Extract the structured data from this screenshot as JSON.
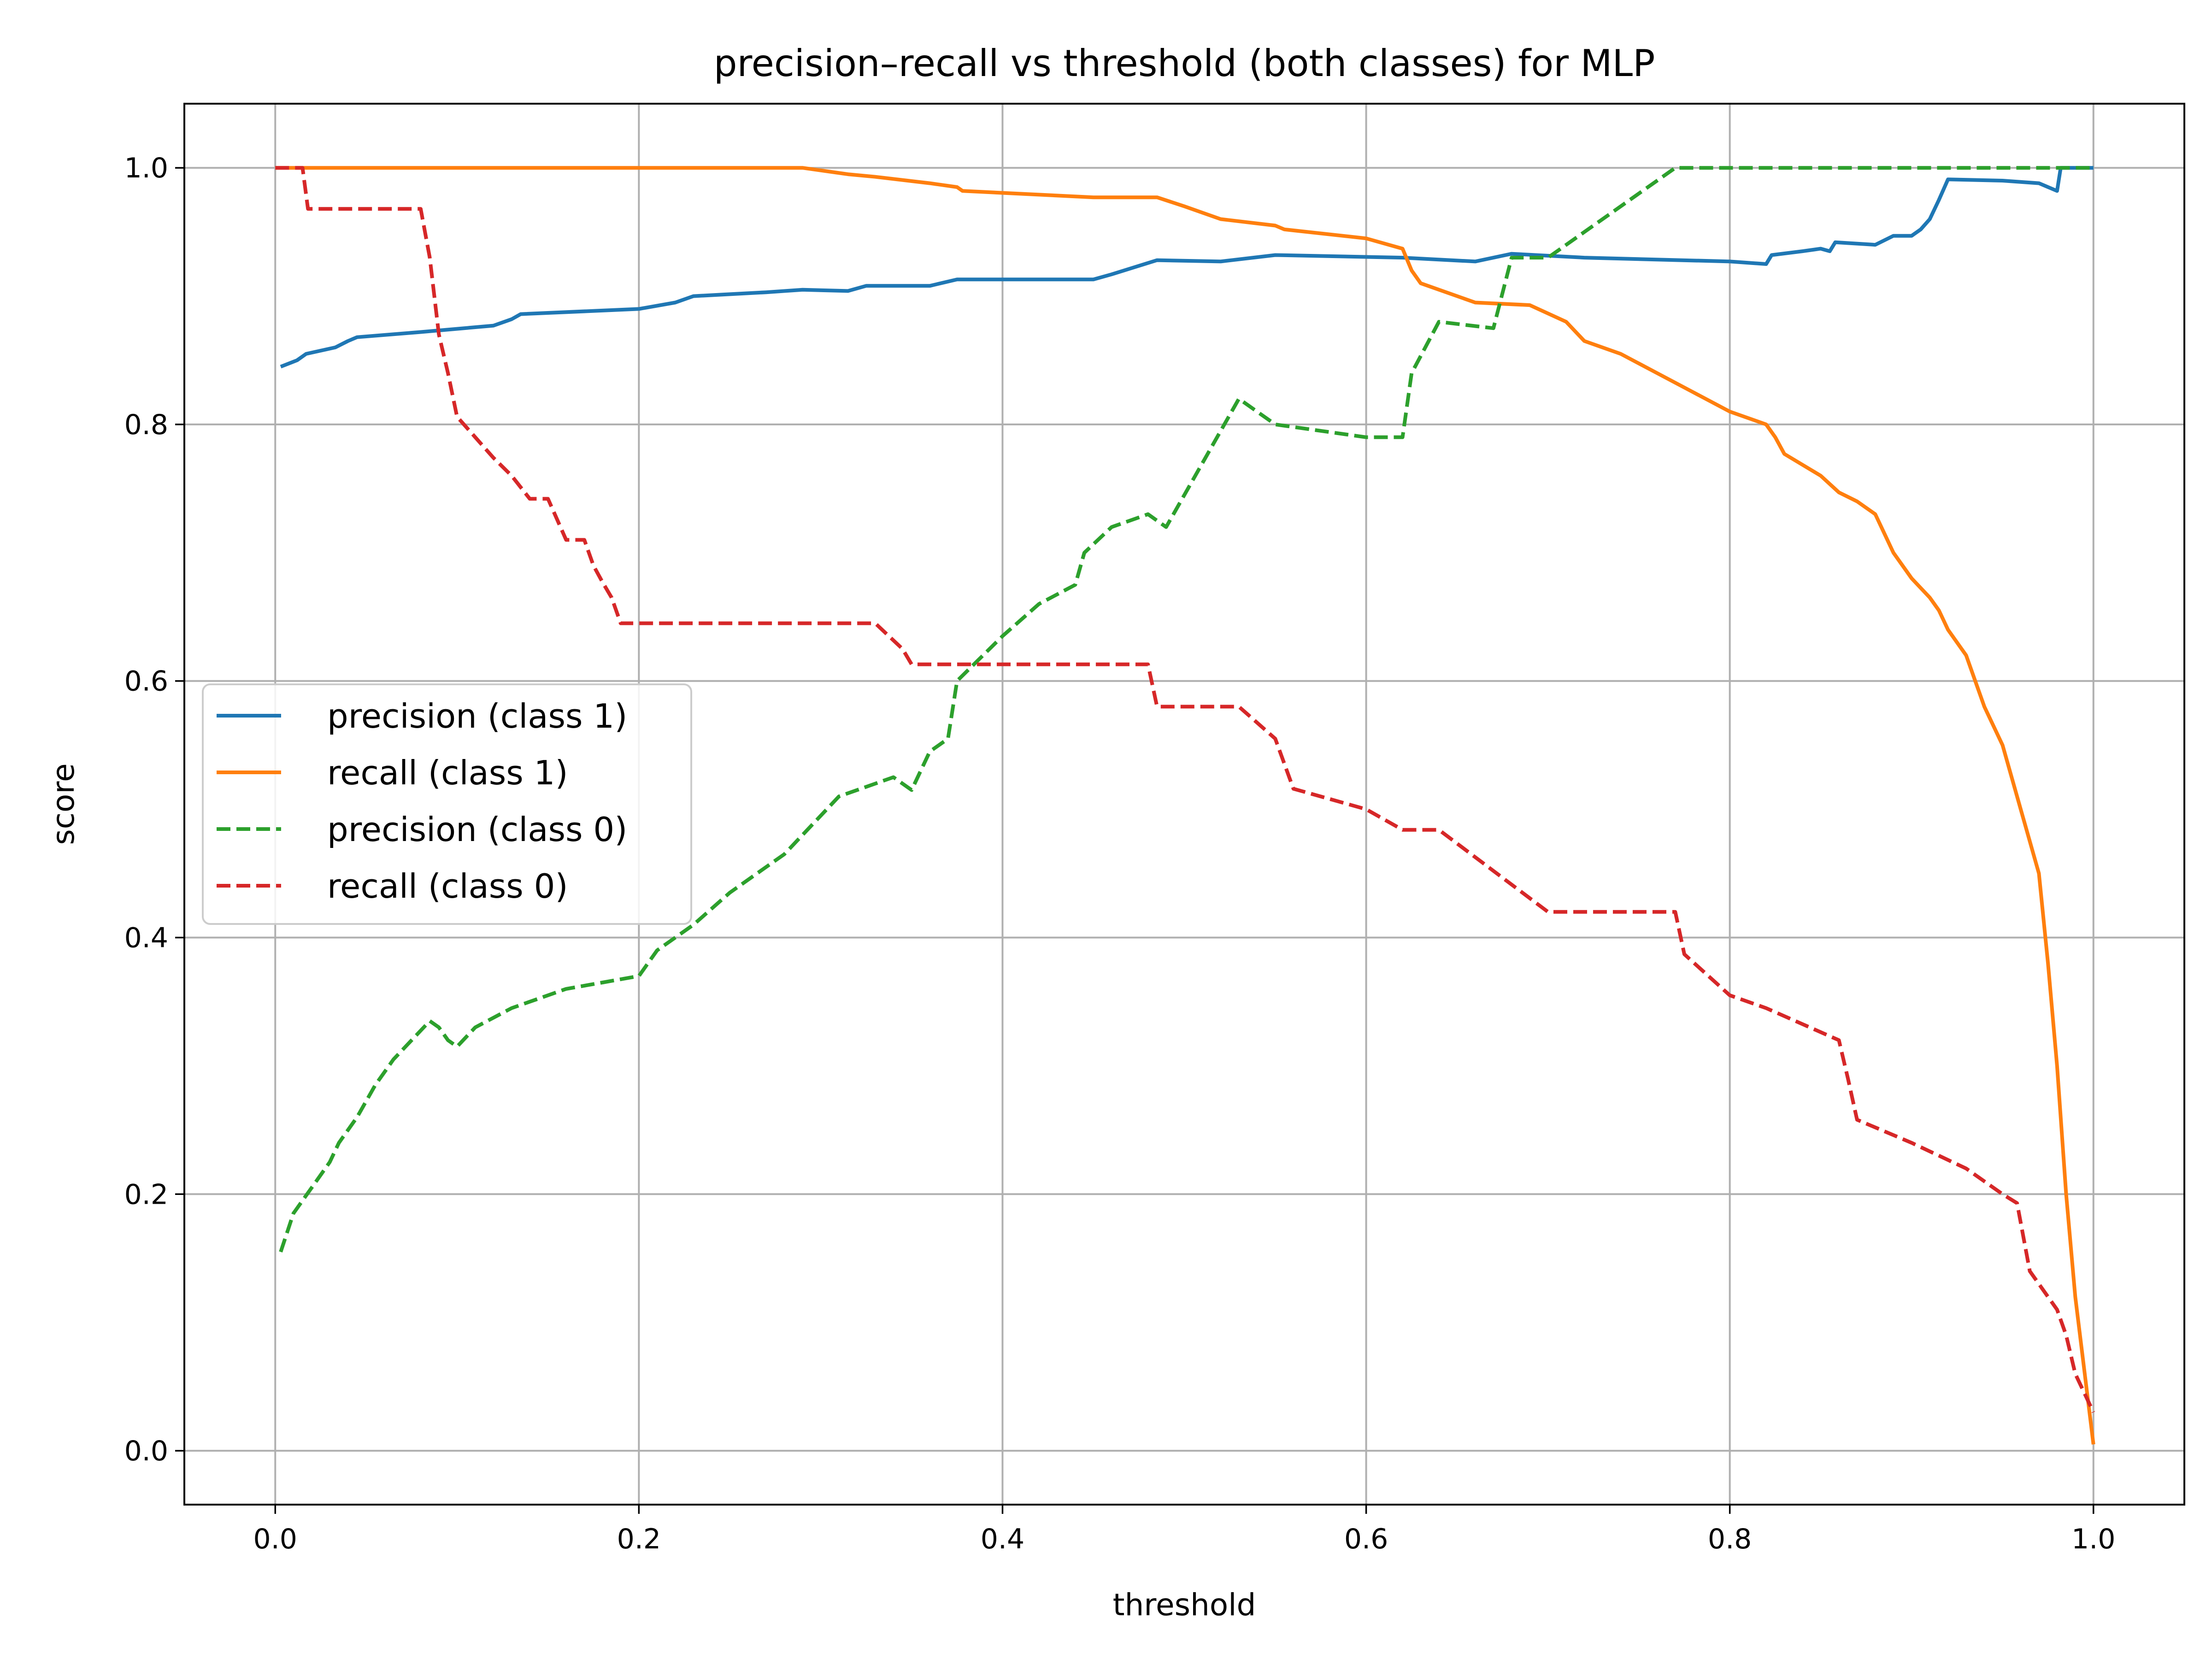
{
  "chart_data": {
    "type": "line",
    "title": "precision–recall vs threshold (both classes) for MLP",
    "xlabel": "threshold",
    "ylabel": "score",
    "xlim": [
      -0.05,
      1.05
    ],
    "ylim": [
      -0.042,
      1.05
    ],
    "xticks": [
      0.0,
      0.2,
      0.4,
      0.6,
      0.8,
      1.0
    ],
    "xtick_labels": [
      "0.0",
      "0.2",
      "0.4",
      "0.6",
      "0.8",
      "1.0"
    ],
    "yticks": [
      0.0,
      0.2,
      0.4,
      0.6,
      0.8,
      1.0
    ],
    "ytick_labels": [
      "0.0",
      "0.2",
      "0.4",
      "0.6",
      "0.8",
      "1.0"
    ],
    "grid": true,
    "legend_position": "center-left",
    "series": [
      {
        "name": "precision (class 1)",
        "color": "#1f77b4",
        "dash": "solid",
        "x": [
          0.003,
          0.012,
          0.017,
          0.033,
          0.04,
          0.045,
          0.08,
          0.12,
          0.13,
          0.135,
          0.2,
          0.22,
          0.23,
          0.27,
          0.29,
          0.315,
          0.325,
          0.36,
          0.375,
          0.45,
          0.46,
          0.485,
          0.52,
          0.55,
          0.62,
          0.66,
          0.68,
          0.72,
          0.8,
          0.82,
          0.823,
          0.84,
          0.85,
          0.855,
          0.858,
          0.88,
          0.89,
          0.9,
          0.905,
          0.91,
          0.915,
          0.92,
          0.95,
          0.97,
          0.98,
          0.982,
          0.99,
          1.0
        ],
        "y": [
          0.845,
          0.85,
          0.855,
          0.86,
          0.865,
          0.868,
          0.872,
          0.877,
          0.882,
          0.886,
          0.89,
          0.895,
          0.9,
          0.903,
          0.905,
          0.904,
          0.908,
          0.908,
          0.913,
          0.913,
          0.917,
          0.928,
          0.927,
          0.932,
          0.93,
          0.927,
          0.933,
          0.93,
          0.927,
          0.925,
          0.932,
          0.935,
          0.937,
          0.935,
          0.942,
          0.94,
          0.947,
          0.947,
          0.952,
          0.96,
          0.975,
          0.991,
          0.99,
          0.988,
          0.982,
          1.0,
          1.0,
          1.0
        ]
      },
      {
        "name": "recall (class 1)",
        "color": "#ff7f0e",
        "dash": "solid",
        "x": [
          0.0,
          0.29,
          0.315,
          0.33,
          0.36,
          0.375,
          0.378,
          0.45,
          0.485,
          0.5,
          0.51,
          0.52,
          0.55,
          0.555,
          0.6,
          0.62,
          0.625,
          0.63,
          0.66,
          0.69,
          0.71,
          0.72,
          0.74,
          0.76,
          0.78,
          0.8,
          0.82,
          0.825,
          0.83,
          0.85,
          0.86,
          0.87,
          0.875,
          0.88,
          0.89,
          0.9,
          0.91,
          0.915,
          0.92,
          0.93,
          0.94,
          0.95,
          0.96,
          0.97,
          0.975,
          0.98,
          0.985,
          0.99,
          1.0
        ],
        "y": [
          1.0,
          1.0,
          0.995,
          0.993,
          0.988,
          0.985,
          0.982,
          0.977,
          0.977,
          0.97,
          0.965,
          0.96,
          0.955,
          0.952,
          0.945,
          0.937,
          0.92,
          0.91,
          0.895,
          0.893,
          0.88,
          0.865,
          0.855,
          0.84,
          0.825,
          0.81,
          0.8,
          0.79,
          0.777,
          0.76,
          0.747,
          0.74,
          0.735,
          0.73,
          0.7,
          0.68,
          0.665,
          0.655,
          0.64,
          0.62,
          0.58,
          0.55,
          0.5,
          0.45,
          0.38,
          0.3,
          0.2,
          0.12,
          0.005
        ]
      },
      {
        "name": "precision (class 0)",
        "color": "#2ca02c",
        "dash": "dashed",
        "x": [
          0.003,
          0.01,
          0.02,
          0.03,
          0.035,
          0.045,
          0.055,
          0.065,
          0.075,
          0.085,
          0.09,
          0.095,
          0.1,
          0.11,
          0.13,
          0.16,
          0.18,
          0.2,
          0.21,
          0.23,
          0.25,
          0.27,
          0.28,
          0.29,
          0.31,
          0.34,
          0.35,
          0.36,
          0.37,
          0.375,
          0.4,
          0.42,
          0.44,
          0.445,
          0.46,
          0.48,
          0.49,
          0.51,
          0.53,
          0.55,
          0.6,
          0.62,
          0.625,
          0.64,
          0.67,
          0.68,
          0.69,
          0.7,
          0.72,
          0.77,
          0.8,
          0.9,
          1.0
        ],
        "y": [
          0.155,
          0.185,
          0.205,
          0.225,
          0.24,
          0.26,
          0.285,
          0.305,
          0.32,
          0.335,
          0.33,
          0.32,
          0.315,
          0.33,
          0.345,
          0.36,
          0.365,
          0.37,
          0.39,
          0.41,
          0.435,
          0.455,
          0.465,
          0.48,
          0.51,
          0.525,
          0.515,
          0.545,
          0.555,
          0.6,
          0.635,
          0.66,
          0.675,
          0.7,
          0.72,
          0.73,
          0.72,
          0.77,
          0.82,
          0.8,
          0.79,
          0.79,
          0.84,
          0.88,
          0.875,
          0.93,
          0.93,
          0.93,
          0.95,
          1.0,
          1.0,
          1.0,
          1.0
        ]
      },
      {
        "name": "recall (class 0)",
        "color": "#d62728",
        "dash": "dashed",
        "x": [
          0.0,
          0.015,
          0.018,
          0.02,
          0.08,
          0.085,
          0.09,
          0.095,
          0.1,
          0.11,
          0.12,
          0.13,
          0.14,
          0.15,
          0.16,
          0.17,
          0.175,
          0.18,
          0.185,
          0.19,
          0.2,
          0.33,
          0.345,
          0.35,
          0.48,
          0.485,
          0.53,
          0.55,
          0.56,
          0.6,
          0.62,
          0.64,
          0.67,
          0.7,
          0.72,
          0.77,
          0.775,
          0.8,
          0.82,
          0.86,
          0.865,
          0.87,
          0.9,
          0.93,
          0.95,
          0.958,
          0.965,
          0.98,
          0.985,
          0.99,
          1.0
        ],
        "y": [
          1.0,
          1.0,
          0.968,
          0.968,
          0.968,
          0.93,
          0.87,
          0.84,
          0.806,
          0.79,
          0.774,
          0.76,
          0.742,
          0.742,
          0.71,
          0.71,
          0.69,
          0.677,
          0.665,
          0.645,
          0.645,
          0.645,
          0.625,
          0.613,
          0.613,
          0.58,
          0.58,
          0.555,
          0.516,
          0.5,
          0.484,
          0.484,
          0.452,
          0.42,
          0.42,
          0.42,
          0.387,
          0.355,
          0.345,
          0.32,
          0.29,
          0.258,
          0.24,
          0.22,
          0.2,
          0.193,
          0.14,
          0.11,
          0.09,
          0.06,
          0.03
        ]
      }
    ]
  }
}
